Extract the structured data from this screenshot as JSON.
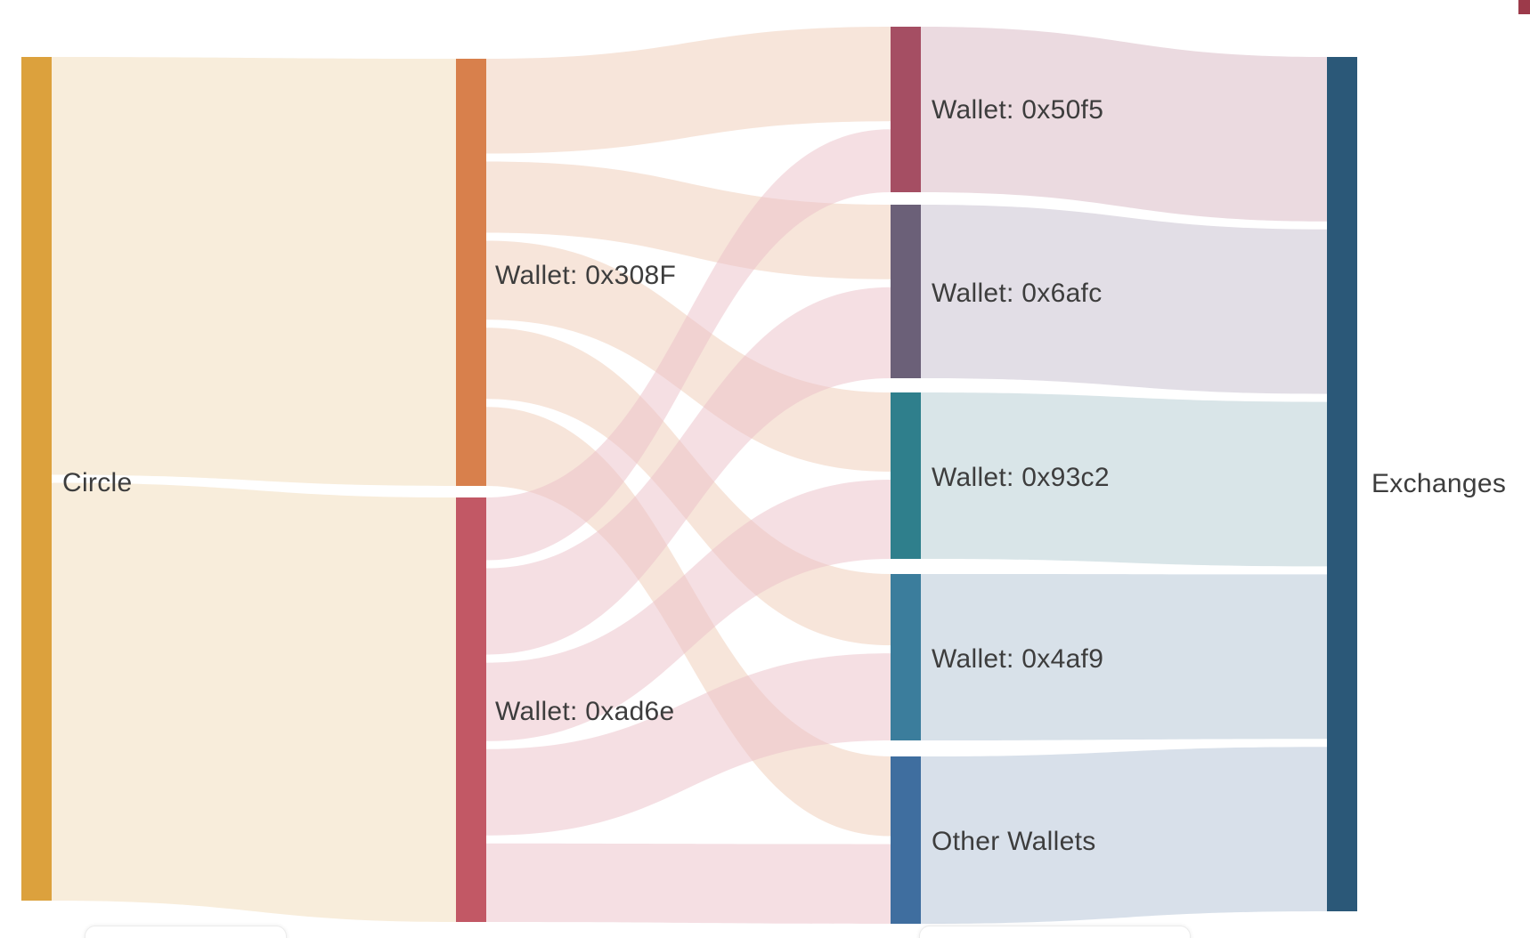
{
  "page": {
    "background_color": "#ffffff",
    "corner_marker_color": "#9C3A4A"
  },
  "chart_data": {
    "type": "sankey",
    "orientation": "horizontal",
    "title": "",
    "value_unit": "relative share of total flow (estimated from ribbon widths, total = 100)",
    "nodes": [
      {
        "id": "circle",
        "label": "Circle",
        "color": "#DCA13D"
      },
      {
        "id": "w308F",
        "label": "Wallet: 0x308F",
        "color": "#D8804C"
      },
      {
        "id": "wad6e",
        "label": "Wallet: 0xad6e",
        "color": "#C25865"
      },
      {
        "id": "w50f5",
        "label": "Wallet: 0x50f5",
        "color": "#A54E63"
      },
      {
        "id": "w6afc",
        "label": "Wallet: 0x6afc",
        "color": "#6B6078"
      },
      {
        "id": "w93c2",
        "label": "Wallet: 0x93c2",
        "color": "#2F7F8C"
      },
      {
        "id": "w4af9",
        "label": "Wallet: 0x4af9",
        "color": "#3B7D9C"
      },
      {
        "id": "other",
        "label": "Other Wallets",
        "color": "#3F6E9F"
      },
      {
        "id": "exchanges",
        "label": "Exchanges",
        "color": "#2B5878"
      }
    ],
    "links": [
      {
        "source": "circle",
        "target": "w308F",
        "value": 50,
        "color": "#F8EDDB",
        "opacity": 1
      },
      {
        "source": "circle",
        "target": "wad6e",
        "value": 50,
        "color": "#F8EDDB",
        "opacity": 1
      },
      {
        "source": "w308F",
        "target": "w50f5",
        "value": 12,
        "color": "#EFCBB5",
        "opacity": 0.5
      },
      {
        "source": "w308F",
        "target": "w6afc",
        "value": 9,
        "color": "#EFCBB5",
        "opacity": 0.5
      },
      {
        "source": "w308F",
        "target": "w93c2",
        "value": 10,
        "color": "#EFCBB5",
        "opacity": 0.5
      },
      {
        "source": "w308F",
        "target": "w4af9",
        "value": 9,
        "color": "#EFCBB5",
        "opacity": 0.5
      },
      {
        "source": "w308F",
        "target": "other",
        "value": 10,
        "color": "#EFCBB5",
        "opacity": 0.5
      },
      {
        "source": "wad6e",
        "target": "w50f5",
        "value": 8,
        "color": "#EBBFC7",
        "opacity": 0.5
      },
      {
        "source": "wad6e",
        "target": "w6afc",
        "value": 11,
        "color": "#EBBFC7",
        "opacity": 0.5
      },
      {
        "source": "wad6e",
        "target": "w93c2",
        "value": 10,
        "color": "#EBBFC7",
        "opacity": 0.5
      },
      {
        "source": "wad6e",
        "target": "w4af9",
        "value": 11,
        "color": "#EBBFC7",
        "opacity": 0.5
      },
      {
        "source": "wad6e",
        "target": "other",
        "value": 10,
        "color": "#EBBFC7",
        "opacity": 0.5
      },
      {
        "source": "w50f5",
        "target": "exchanges",
        "value": 20,
        "color": "#EBDAE0",
        "opacity": 1
      },
      {
        "source": "w6afc",
        "target": "exchanges",
        "value": 20,
        "color": "#E2DEE6",
        "opacity": 1
      },
      {
        "source": "w93c2",
        "target": "exchanges",
        "value": 20,
        "color": "#D9E5E8",
        "opacity": 1
      },
      {
        "source": "w4af9",
        "target": "exchanges",
        "value": 20,
        "color": "#D8E1E9",
        "opacity": 1
      },
      {
        "source": "other",
        "target": "exchanges",
        "value": 20,
        "color": "#D8E0EA",
        "opacity": 1
      }
    ]
  }
}
